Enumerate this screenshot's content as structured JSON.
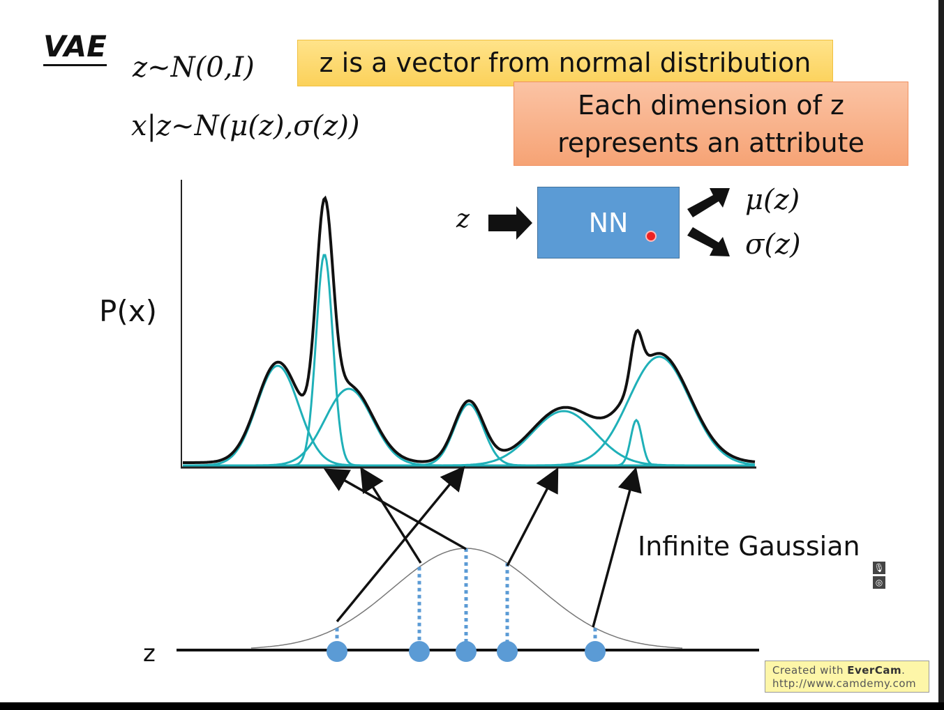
{
  "slide": {
    "title": "VAE",
    "eq1": "z~N(0,I)",
    "eq2": "x|z~N(μ(z),σ(z))",
    "callout1": "z is a vector from normal distribution",
    "callout2_line1": "Each dimension of z",
    "callout2_line2": "represents an attribute",
    "nn_input": "z",
    "nn_label": "NN",
    "nn_out_mu": "μ(z)",
    "nn_out_sigma": "σ(z)",
    "y_label": "P(x)",
    "z_axis_label": "z",
    "infinite_label": "Infinite Gaussian",
    "colors": {
      "component": "#1fb0b8",
      "mixture": "#111111",
      "nn_box": "#5b9bd5",
      "sample_dot": "#5b9bd5"
    }
  },
  "player": {
    "mic_icon": "microphone-icon",
    "target_icon": "target-icon",
    "watermark_line1_prefix": "Created with ",
    "watermark_brand": "EverCam",
    "watermark_line2": "http://www.camdemy.com"
  }
}
